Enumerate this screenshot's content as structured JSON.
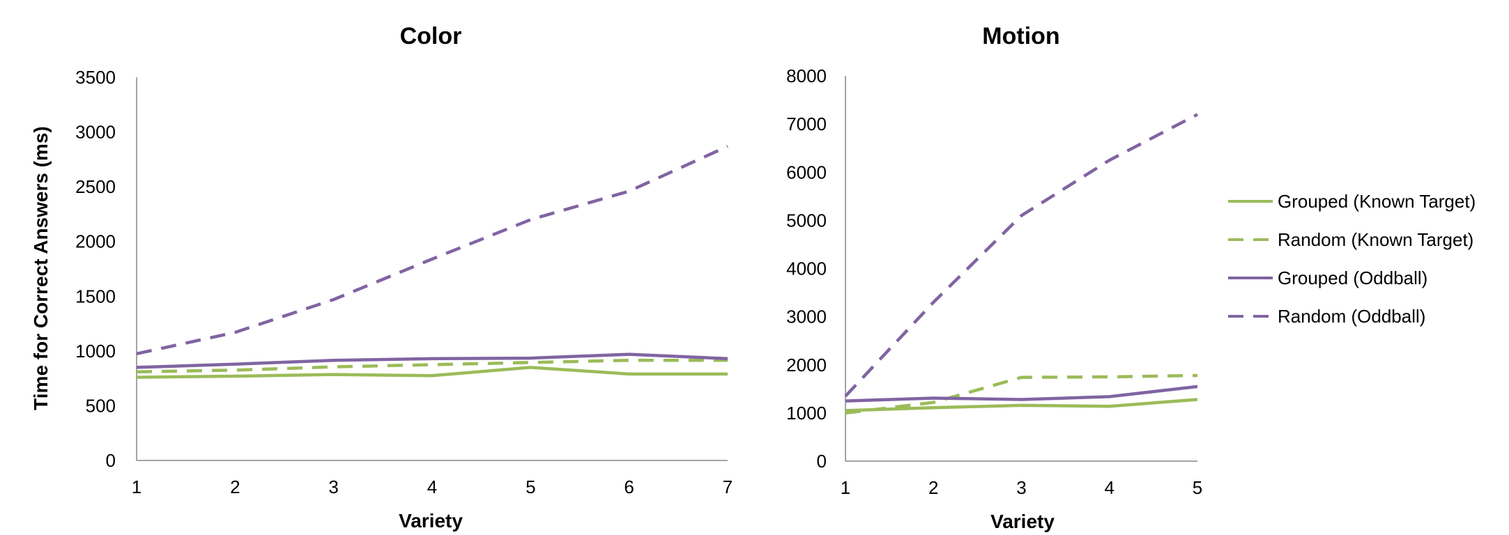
{
  "chart_data": [
    {
      "type": "line",
      "title": "Color",
      "xlabel": "Variety",
      "ylabel": "Time for Correct Answers (ms)",
      "x": [
        1,
        2,
        3,
        4,
        5,
        6,
        7
      ],
      "ylim": [
        0,
        3500
      ],
      "yticks": [
        0,
        500,
        1000,
        1500,
        2000,
        2500,
        3000,
        3500
      ],
      "series": [
        {
          "name": "Grouped (Known Target)",
          "values": [
            760,
            770,
            785,
            775,
            850,
            790,
            790
          ]
        },
        {
          "name": "Random (Known Target)",
          "values": [
            810,
            825,
            855,
            875,
            895,
            915,
            915
          ]
        },
        {
          "name": "Grouped (Oddball)",
          "values": [
            850,
            880,
            915,
            930,
            935,
            970,
            930
          ]
        },
        {
          "name": "Random (Oddball)",
          "values": [
            975,
            1170,
            1470,
            1840,
            2200,
            2460,
            2870
          ]
        }
      ]
    },
    {
      "type": "line",
      "title": "Motion",
      "xlabel": "Variety",
      "ylabel": "",
      "x": [
        1,
        2,
        3,
        4,
        5
      ],
      "ylim": [
        0,
        8000
      ],
      "yticks": [
        0,
        1000,
        2000,
        3000,
        4000,
        5000,
        6000,
        7000,
        8000
      ],
      "series": [
        {
          "name": "Grouped (Known Target)",
          "values": [
            1050,
            1110,
            1160,
            1140,
            1280
          ]
        },
        {
          "name": "Random (Known Target)",
          "values": [
            1000,
            1220,
            1740,
            1750,
            1780
          ]
        },
        {
          "name": "Grouped (Oddball)",
          "values": [
            1250,
            1310,
            1280,
            1340,
            1550
          ]
        },
        {
          "name": "Random (Oddball)",
          "values": [
            1350,
            3300,
            5100,
            6250,
            7200
          ]
        }
      ]
    }
  ],
  "legend": {
    "placement": "right",
    "items": [
      {
        "label": "Grouped (Known Target)",
        "color": "#9BBB59",
        "dash": "solid"
      },
      {
        "label": "Random (Known Target)",
        "color": "#9BBB59",
        "dash": "dashed"
      },
      {
        "label": "Grouped (Oddball)",
        "color": "#8064A2",
        "dash": "solid"
      },
      {
        "label": "Random (Oddball)",
        "color": "#8064A2",
        "dash": "dashed"
      }
    ]
  },
  "colors": {
    "green": "#9BBB59",
    "purple": "#8064A2",
    "axis": "#868686"
  }
}
